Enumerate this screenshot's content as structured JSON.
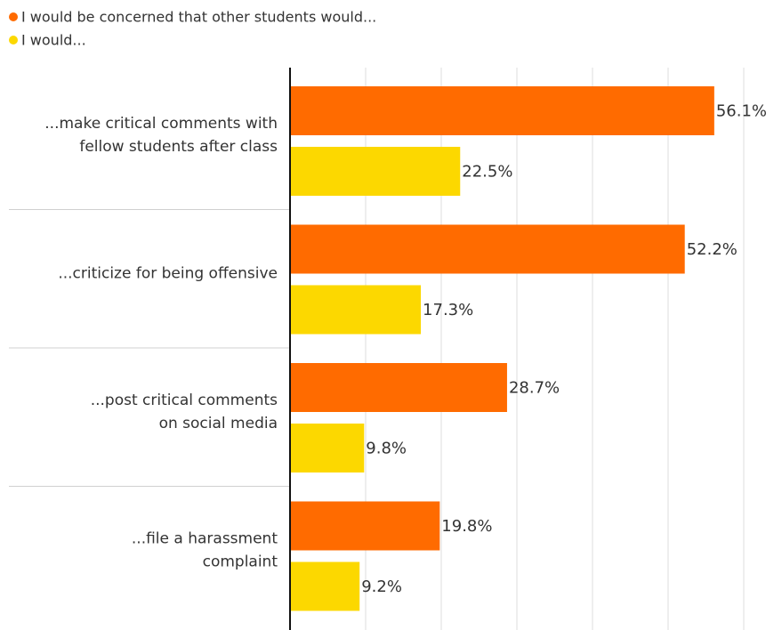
{
  "chart_data": {
    "type": "bar",
    "orientation": "horizontal",
    "categories": [
      [
        "...make critical comments with",
        "fellow students after class"
      ],
      [
        "...criticize for being offensive"
      ],
      [
        "...post critical comments",
        "on social media"
      ],
      [
        "...file a harassment",
        "complaint"
      ]
    ],
    "series": [
      {
        "name": "I would be concerned that other students would...",
        "color": "#ff6b00",
        "values": [
          56.1,
          52.2,
          28.7,
          19.8
        ],
        "value_labels": [
          "56.1%",
          "52.2%",
          "28.7%",
          "19.8%"
        ]
      },
      {
        "name": "I would...",
        "color": "#fcd800",
        "values": [
          22.5,
          17.3,
          9.8,
          9.2
        ],
        "value_labels": [
          "22.5%",
          "17.3%",
          "9.8%",
          "9.2%"
        ]
      }
    ],
    "xlim": [
      0,
      60
    ],
    "xticks": [
      0,
      10,
      20,
      30,
      40,
      50,
      60
    ],
    "grid": true
  }
}
